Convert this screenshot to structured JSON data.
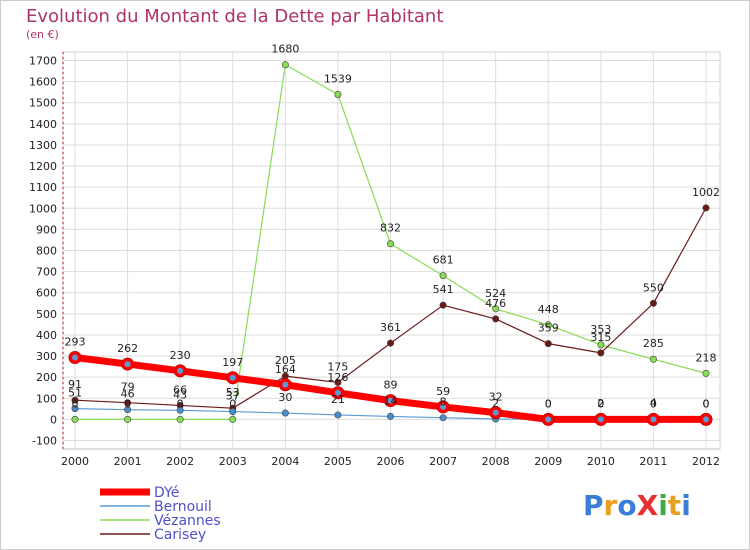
{
  "chart_data": {
    "type": "line",
    "title": "Evolution du Montant de la Dette par Habitant",
    "subtitle": "(en €)",
    "xlabel": "",
    "ylabel": "",
    "x": [
      "2000",
      "2001",
      "2002",
      "2003",
      "2004",
      "2005",
      "2006",
      "2007",
      "2008",
      "2009",
      "2010",
      "2011",
      "2012"
    ],
    "ylim": [
      -100,
      1700
    ],
    "yticks": [
      "-100",
      "0",
      "100",
      "200",
      "300",
      "400",
      "500",
      "600",
      "700",
      "800",
      "900",
      "1000",
      "1100",
      "1200",
      "1300",
      "1400",
      "1500",
      "1600",
      "1700"
    ],
    "grid": true,
    "legend_position": "bottom-left",
    "series": [
      {
        "name": "DYé",
        "color": "#ff0000",
        "values": [
          293,
          262,
          230,
          197,
          164,
          126,
          89,
          59,
          32,
          0,
          0,
          0,
          0
        ],
        "labels": [
          "293",
          "262",
          "230",
          "197",
          "164",
          "126",
          "89",
          "59",
          "32",
          "0",
          "0",
          "0",
          "0"
        ]
      },
      {
        "name": "Bernouil",
        "color": "#5b9bd5",
        "values": [
          51,
          46,
          43,
          37,
          30,
          21,
          14,
          8,
          2,
          0,
          2,
          4,
          0
        ],
        "labels": [
          "51",
          "46",
          "43",
          "37",
          "30",
          "21",
          "14",
          "8",
          "2",
          "0",
          "2",
          "4",
          "0"
        ]
      },
      {
        "name": "Vézannes",
        "color": "#88dd55",
        "values": [
          0,
          0,
          0,
          0,
          1680,
          1539,
          832,
          681,
          524,
          448,
          353,
          285,
          218
        ],
        "labels": [
          "0",
          "0",
          "0",
          "0",
          "1680",
          "1539",
          "832",
          "681",
          "524",
          "448",
          "353",
          "285",
          "218"
        ]
      },
      {
        "name": "Carisey",
        "color": "#6b1a1a",
        "values": [
          91,
          79,
          66,
          53,
          205,
          175,
          361,
          541,
          476,
          359,
          315,
          550,
          1002
        ],
        "labels": [
          "91",
          "79",
          "66",
          "53",
          "205",
          "175",
          "361",
          "541",
          "476",
          "359",
          "315",
          "550",
          "1002"
        ]
      }
    ]
  },
  "logo": {
    "text": "ProXiti"
  }
}
